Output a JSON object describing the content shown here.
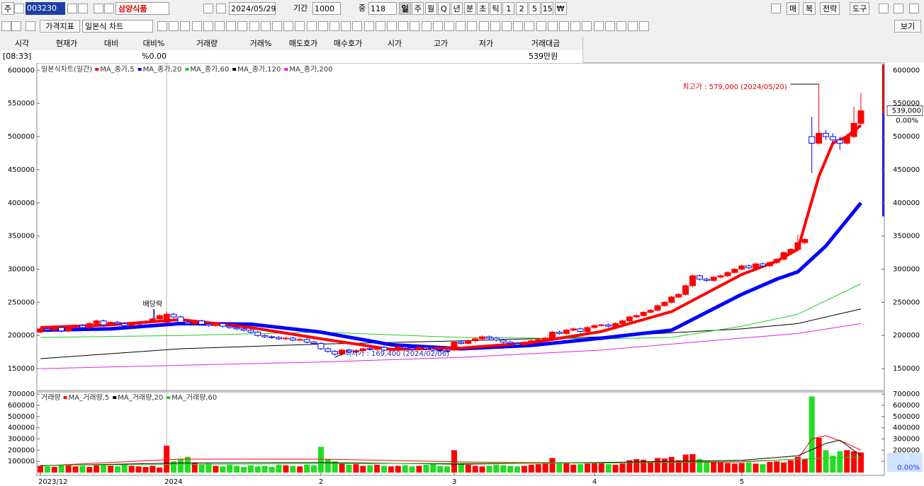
{
  "toolbar": {
    "market": "주",
    "code": "003230",
    "name": "삼양식품",
    "date": "2024/05/29",
    "period_label": "기간",
    "period": 1000,
    "count_label": "중",
    "count": 118,
    "intervals": [
      "일",
      "주",
      "월",
      "Q",
      "년",
      "분",
      "초",
      "틱",
      "1",
      "2",
      "5",
      "15",
      "₩"
    ],
    "right": [
      "매",
      "복",
      "전략",
      "도구"
    ],
    "indicator": "가격지표",
    "chart_style": "일본식 차트",
    "view": "보기"
  },
  "info": {
    "headers": [
      "시각",
      "현재가",
      "대비",
      "대비%",
      "거래량",
      "거래%",
      "매도호가",
      "매수호가",
      "시가",
      "고가",
      "저가",
      "거래대금"
    ],
    "time": "[08:33]",
    "change_rate": "%0.00",
    "trade_value": "539만원"
  },
  "chart_data": [
    {
      "type": "candlestick",
      "legend_title": "일본식차트(일간)",
      "up_color": "#ff0000",
      "down_color": "#0000ff",
      "open": [
        205000,
        210000,
        208000,
        212000,
        207000,
        213000,
        215000,
        212000,
        218000,
        222000,
        216000,
        220000,
        218000,
        215000,
        217000,
        219000,
        221000,
        225000,
        220000,
        232000,
        228000,
        220000,
        218000,
        222000,
        217000,
        215000,
        218000,
        214000,
        212000,
        210000,
        208000,
        205000,
        200000,
        198000,
        197000,
        195000,
        196000,
        193000,
        194000,
        190000,
        188000,
        180000,
        176000,
        172000,
        178000,
        175000,
        177000,
        180000,
        179000,
        182000,
        178000,
        180000,
        183000,
        181000,
        179000,
        182000,
        180000,
        178000,
        177000,
        178000,
        190000,
        188000,
        192000,
        195000,
        198000,
        196000,
        193000,
        190000,
        188000,
        186000,
        189000,
        192000,
        194000,
        196000,
        205000,
        203000,
        208000,
        210000,
        206000,
        212000,
        215000,
        216000,
        214000,
        218000,
        222000,
        228000,
        230000,
        235000,
        238000,
        245000,
        250000,
        258000,
        262000,
        275000,
        290000,
        285000,
        283000,
        288000,
        290000,
        295000,
        300000,
        305000,
        302000,
        308000,
        305000,
        310000,
        315000,
        325000,
        330000,
        340000,
        500000,
        490000,
        505000,
        500000,
        495000,
        490000,
        500000,
        520000
      ],
      "high": [
        212000,
        212000,
        214000,
        214000,
        215000,
        217000,
        217000,
        220000,
        224000,
        224000,
        222000,
        222000,
        220000,
        219000,
        221000,
        223000,
        227000,
        232000,
        236000,
        234000,
        230000,
        222000,
        224000,
        224000,
        219000,
        220000,
        220000,
        216000,
        214000,
        212000,
        210000,
        207000,
        202000,
        200000,
        199000,
        198000,
        198000,
        196000,
        196000,
        192000,
        190000,
        182000,
        178000,
        180000,
        180000,
        179000,
        182000,
        182000,
        184000,
        184000,
        182000,
        185000,
        185000,
        183000,
        184000,
        184000,
        182000,
        180000,
        179000,
        192000,
        192000,
        194000,
        197000,
        200000,
        200000,
        198000,
        195000,
        192000,
        190000,
        191000,
        194000,
        196000,
        198000,
        207000,
        207000,
        210000,
        212000,
        212000,
        214000,
        217000,
        218000,
        218000,
        220000,
        224000,
        230000,
        232000,
        237000,
        240000,
        247000,
        252000,
        260000,
        264000,
        277000,
        292000,
        292000,
        287000,
        290000,
        292000,
        297000,
        302000,
        307000,
        307000,
        310000,
        310000,
        312000,
        317000,
        327000,
        332000,
        352000,
        347000,
        530000,
        579000,
        510000,
        505000,
        500000,
        505000,
        545000,
        566000
      ],
      "low": [
        203000,
        206000,
        206000,
        205000,
        205000,
        211000,
        210000,
        210000,
        216000,
        214000,
        214000,
        216000,
        213000,
        213000,
        215000,
        217000,
        219000,
        223000,
        218000,
        226000,
        218000,
        216000,
        216000,
        215000,
        213000,
        213000,
        212000,
        210000,
        208000,
        206000,
        203000,
        198000,
        196000,
        195000,
        193000,
        193000,
        191000,
        191000,
        188000,
        186000,
        178000,
        174000,
        169400,
        170000,
        173000,
        173000,
        175000,
        177000,
        177000,
        176000,
        176000,
        178000,
        179000,
        177000,
        177000,
        178000,
        176000,
        175000,
        174000,
        176000,
        186000,
        186000,
        190000,
        193000,
        194000,
        191000,
        188000,
        186000,
        184000,
        184000,
        187000,
        190000,
        192000,
        194000,
        201000,
        201000,
        206000,
        204000,
        204000,
        210000,
        213000,
        212000,
        212000,
        216000,
        220000,
        226000,
        228000,
        233000,
        236000,
        243000,
        248000,
        256000,
        260000,
        273000,
        283000,
        281000,
        281000,
        286000,
        288000,
        293000,
        298000,
        300000,
        300000,
        303000,
        303000,
        308000,
        313000,
        323000,
        328000,
        338000,
        445000,
        488000,
        495000,
        490000,
        480000,
        488000,
        498000,
        518000
      ],
      "close": [
        210000,
        208000,
        212000,
        207000,
        213000,
        215000,
        212000,
        218000,
        222000,
        216000,
        220000,
        218000,
        215000,
        217000,
        219000,
        221000,
        225000,
        230000,
        232000,
        228000,
        220000,
        218000,
        222000,
        217000,
        215000,
        218000,
        214000,
        212000,
        210000,
        208000,
        205000,
        200000,
        198000,
        197000,
        195000,
        196000,
        193000,
        194000,
        190000,
        188000,
        180000,
        176000,
        172000,
        178000,
        175000,
        177000,
        180000,
        179000,
        182000,
        178000,
        180000,
        183000,
        181000,
        179000,
        182000,
        180000,
        178000,
        177000,
        176000,
        190000,
        188000,
        192000,
        195000,
        198000,
        196000,
        193000,
        190000,
        188000,
        186000,
        189000,
        192000,
        194000,
        196000,
        205000,
        203000,
        208000,
        210000,
        206000,
        212000,
        215000,
        216000,
        214000,
        218000,
        222000,
        228000,
        230000,
        235000,
        238000,
        245000,
        250000,
        258000,
        262000,
        275000,
        290000,
        285000,
        283000,
        288000,
        290000,
        295000,
        300000,
        305000,
        302000,
        308000,
        305000,
        310000,
        315000,
        325000,
        330000,
        340000,
        345000,
        490000,
        505000,
        500000,
        495000,
        490000,
        500000,
        520000,
        539000
      ],
      "series": [
        {
          "name": "MA_종가,5",
          "color": "#ff0000",
          "width": 4,
          "x": [
            0,
            10,
            20,
            30,
            40,
            50,
            60,
            70,
            80,
            90,
            100,
            105,
            108,
            111,
            113,
            115,
            117
          ],
          "values": [
            212000,
            216000,
            224000,
            212000,
            195000,
            179000,
            181000,
            189000,
            206000,
            236000,
            292000,
            312000,
            330000,
            440000,
            490000,
            500000,
            517000
          ]
        },
        {
          "name": "MA_종가,20",
          "color": "#0000ff",
          "width": 5,
          "x": [
            0,
            10,
            20,
            30,
            40,
            50,
            60,
            70,
            80,
            90,
            100,
            105,
            108,
            112,
            117
          ],
          "values": [
            208000,
            210000,
            218000,
            217000,
            205000,
            186000,
            180000,
            185000,
            196000,
            208000,
            262000,
            285000,
            296000,
            335000,
            400000
          ]
        },
        {
          "name": "MA_종가,60",
          "color": "#22cc22",
          "width": 1,
          "x": [
            0,
            20,
            40,
            60,
            80,
            90,
            100,
            108,
            117
          ],
          "values": [
            197000,
            200000,
            205000,
            197000,
            195000,
            197000,
            214000,
            232000,
            278000
          ]
        },
        {
          "name": "MA_종가,120",
          "color": "#000000",
          "width": 1,
          "x": [
            0,
            20,
            40,
            60,
            80,
            100,
            108,
            117
          ],
          "values": [
            165000,
            180000,
            187000,
            192000,
            198000,
            210000,
            218000,
            240000
          ]
        },
        {
          "name": "MA_종가,200",
          "color": "#e020e0",
          "width": 1,
          "x": [
            0,
            20,
            40,
            60,
            80,
            100,
            108,
            117
          ],
          "values": [
            150000,
            155000,
            160000,
            167000,
            178000,
            196000,
            203000,
            218000
          ]
        }
      ],
      "ylim": [
        117000,
        610000
      ],
      "yticks": [
        150000,
        200000,
        250000,
        300000,
        350000,
        400000,
        450000,
        500000,
        550000,
        600000
      ],
      "annotations": [
        {
          "text": "최고가 : 579,000 (2024/05/20)",
          "index": 111
        },
        {
          "text": "최저가 : 169,400 (2024/02/06)",
          "index": 42
        },
        {
          "text": "배당락",
          "index": 16
        }
      ],
      "last_label": "539,000",
      "change_label": "0.00%"
    },
    {
      "type": "bar",
      "legend_title": "거래량",
      "values": [
        60000,
        55000,
        50000,
        65000,
        70000,
        55000,
        60000,
        50000,
        65000,
        70000,
        60000,
        55000,
        75000,
        60000,
        55000,
        50000,
        60000,
        45000,
        240000,
        100000,
        120000,
        140000,
        90000,
        70000,
        80000,
        60000,
        55000,
        70000,
        60000,
        50000,
        65000,
        55000,
        60000,
        50000,
        70000,
        65000,
        60000,
        55000,
        70000,
        65000,
        230000,
        120000,
        100000,
        80000,
        70000,
        75000,
        60000,
        65000,
        70000,
        60000,
        55000,
        60000,
        65000,
        55000,
        60000,
        70000,
        75000,
        60000,
        55000,
        200000,
        80000,
        70000,
        60000,
        55000,
        60000,
        70000,
        65000,
        60000,
        55000,
        60000,
        70000,
        75000,
        80000,
        130000,
        90000,
        85000,
        70000,
        75000,
        80000,
        90000,
        85000,
        75000,
        70000,
        80000,
        110000,
        120000,
        115000,
        100000,
        130000,
        125000,
        140000,
        110000,
        160000,
        165000,
        120000,
        100000,
        95000,
        90000,
        85000,
        80000,
        85000,
        90000,
        80000,
        75000,
        95000,
        100000,
        90000,
        110000,
        140000,
        120000,
        680000,
        310000,
        200000,
        150000,
        190000,
        200000,
        190000,
        180000
      ],
      "series": [
        {
          "name": "MA_거래량,5",
          "color": "#ff0000",
          "x": [
            0,
            20,
            40,
            60,
            80,
            100,
            108,
            110,
            112,
            115,
            117
          ],
          "values": [
            60000,
            120000,
            120000,
            95000,
            85000,
            95000,
            120000,
            300000,
            330000,
            260000,
            200000
          ]
        },
        {
          "name": "MA_거래량,20",
          "color": "#000000",
          "x": [
            0,
            20,
            40,
            60,
            80,
            100,
            108,
            112,
            114,
            117
          ],
          "values": [
            62000,
            85000,
            90000,
            75000,
            90000,
            110000,
            150000,
            260000,
            290000,
            150000
          ]
        },
        {
          "name": "MA_거래량,60",
          "color": "#22cc22",
          "x": [
            0,
            40,
            80,
            100,
            117
          ],
          "values": [
            65000,
            80000,
            85000,
            100000,
            140000
          ]
        }
      ],
      "ylim": [
        0,
        714000
      ],
      "yticks": [
        100000,
        200000,
        300000,
        400000,
        500000,
        600000,
        700000
      ],
      "xticks": [
        {
          "value": 0,
          "label": "2023/12"
        },
        {
          "value": 18,
          "label": "2024"
        },
        {
          "value": 40,
          "label": "2"
        },
        {
          "value": 59,
          "label": "3"
        },
        {
          "value": 79,
          "label": "4"
        },
        {
          "value": 100,
          "label": "5"
        }
      ],
      "current_value": 0,
      "change_label": "0.00%"
    }
  ]
}
